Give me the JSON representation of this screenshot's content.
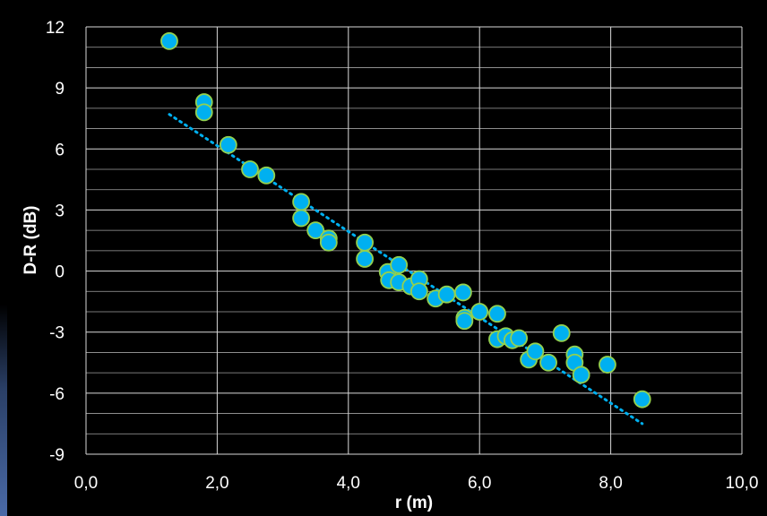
{
  "chart_data": {
    "type": "scatter",
    "title": "",
    "xlabel": "r (m)",
    "ylabel": "D-R (dB)",
    "xlim": [
      0,
      10
    ],
    "ylim": [
      -9,
      12
    ],
    "x_ticks": [
      0,
      2,
      4,
      6,
      8,
      10
    ],
    "x_tick_labels": [
      "0,0",
      "2,0",
      "4,0",
      "6,0",
      "8,0",
      "10,0"
    ],
    "y_ticks": [
      -9,
      -6,
      -3,
      0,
      3,
      6,
      9,
      12
    ],
    "y_tick_labels": [
      "-9",
      "-6",
      "-3",
      "0",
      "3",
      "6",
      "9",
      "12"
    ],
    "grid": {
      "major_x": true,
      "major_y": true,
      "minor_y": true
    },
    "legend": "none",
    "colors": {
      "marker_fill": "#00b0f0",
      "marker_edge": "#92d050",
      "trendline": "#00b0f0",
      "grid": "#d9d9d9",
      "background": "#000000",
      "text": "#ffffff"
    },
    "series": [
      {
        "points": [
          [
            1.27,
            11.3
          ],
          [
            1.8,
            8.3
          ],
          [
            1.8,
            7.8
          ],
          [
            2.17,
            6.2
          ],
          [
            2.5,
            5.0
          ],
          [
            2.75,
            4.7
          ],
          [
            3.28,
            3.4
          ],
          [
            3.28,
            2.6
          ],
          [
            3.5,
            2.0
          ],
          [
            3.7,
            1.6
          ],
          [
            3.7,
            1.4
          ],
          [
            4.25,
            1.4
          ],
          [
            4.25,
            0.6
          ],
          [
            4.6,
            -0.05
          ],
          [
            4.62,
            -0.45
          ],
          [
            4.77,
            0.3
          ],
          [
            4.77,
            -0.55
          ],
          [
            4.95,
            -0.75
          ],
          [
            5.08,
            -0.4
          ],
          [
            5.08,
            -1.0
          ],
          [
            5.33,
            -1.35
          ],
          [
            5.5,
            -1.15
          ],
          [
            5.75,
            -1.05
          ],
          [
            5.77,
            -2.3
          ],
          [
            5.77,
            -2.45
          ],
          [
            6.0,
            -2.0
          ],
          [
            6.27,
            -2.1
          ],
          [
            6.27,
            -3.35
          ],
          [
            6.4,
            -3.2
          ],
          [
            6.5,
            -3.4
          ],
          [
            6.6,
            -3.3
          ],
          [
            6.75,
            -4.35
          ],
          [
            6.85,
            -3.95
          ],
          [
            7.05,
            -4.5
          ],
          [
            7.25,
            -3.05
          ],
          [
            7.45,
            -4.1
          ],
          [
            7.45,
            -4.5
          ],
          [
            7.55,
            -5.1
          ],
          [
            7.95,
            -4.6
          ],
          [
            8.48,
            -6.3
          ]
        ]
      }
    ],
    "trendline": {
      "type": "linear",
      "style": "dotted",
      "x": [
        1.27,
        8.48
      ],
      "y": [
        7.7,
        -7.5
      ]
    }
  }
}
